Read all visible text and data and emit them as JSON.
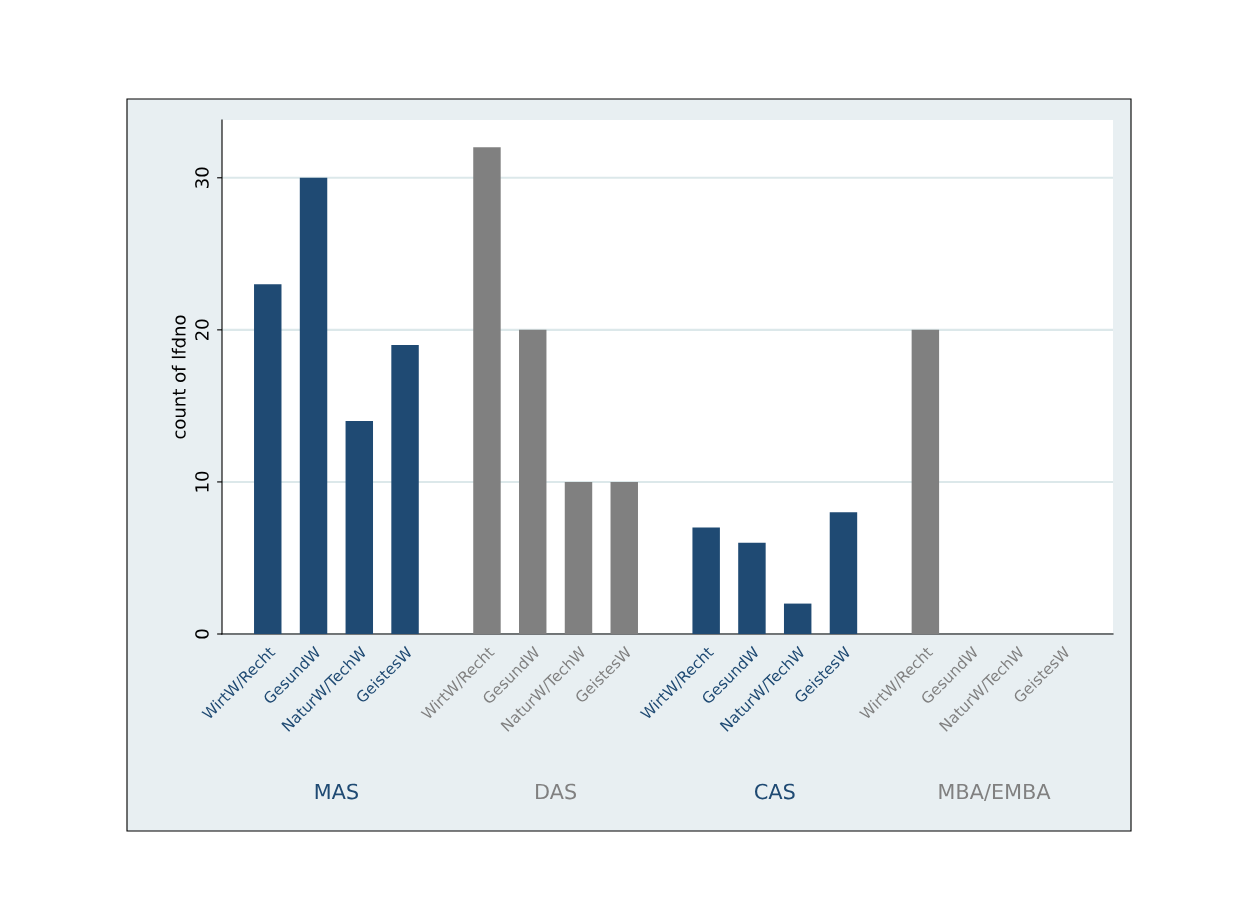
{
  "chart_data": {
    "type": "bar",
    "ylabel": "count of lfdno",
    "categories": [
      "WirtW/Recht",
      "GesundW",
      "NaturW/TechW",
      "GeistesW",
      "WirtW/Recht",
      "GesundW",
      "NaturW/TechW",
      "GeistesW",
      "WirtW/Recht",
      "GesundW",
      "NaturW/TechW",
      "GeistesW",
      "WirtW/Recht",
      "GesundW",
      "NaturW/TechW",
      "GeistesW"
    ],
    "series": [
      {
        "color": "#1f4a73",
        "values": [
          23,
          30,
          14,
          19,
          null,
          null,
          null,
          null,
          null,
          null,
          null,
          null,
          null,
          null,
          null,
          null
        ]
      },
      {
        "color": "#808080",
        "values": [
          null,
          null,
          null,
          null,
          32,
          20,
          10,
          10,
          null,
          null,
          null,
          null,
          null,
          null,
          null,
          null
        ]
      },
      {
        "color": "#1f4a73",
        "values": [
          null,
          null,
          null,
          null,
          null,
          null,
          null,
          null,
          7,
          6,
          2,
          8,
          null,
          null,
          null,
          null
        ]
      },
      {
        "color": "#808080",
        "values": [
          null,
          null,
          null,
          null,
          null,
          null,
          null,
          null,
          null,
          null,
          null,
          null,
          20,
          0,
          0,
          0
        ]
      }
    ],
    "annotations": [
      "MAS",
      "DAS",
      "CAS",
      "MBA/EMBA"
    ],
    "ylim": [
      0,
      33.8
    ],
    "yticks": [
      0,
      10,
      20,
      30
    ],
    "grid": "y"
  }
}
